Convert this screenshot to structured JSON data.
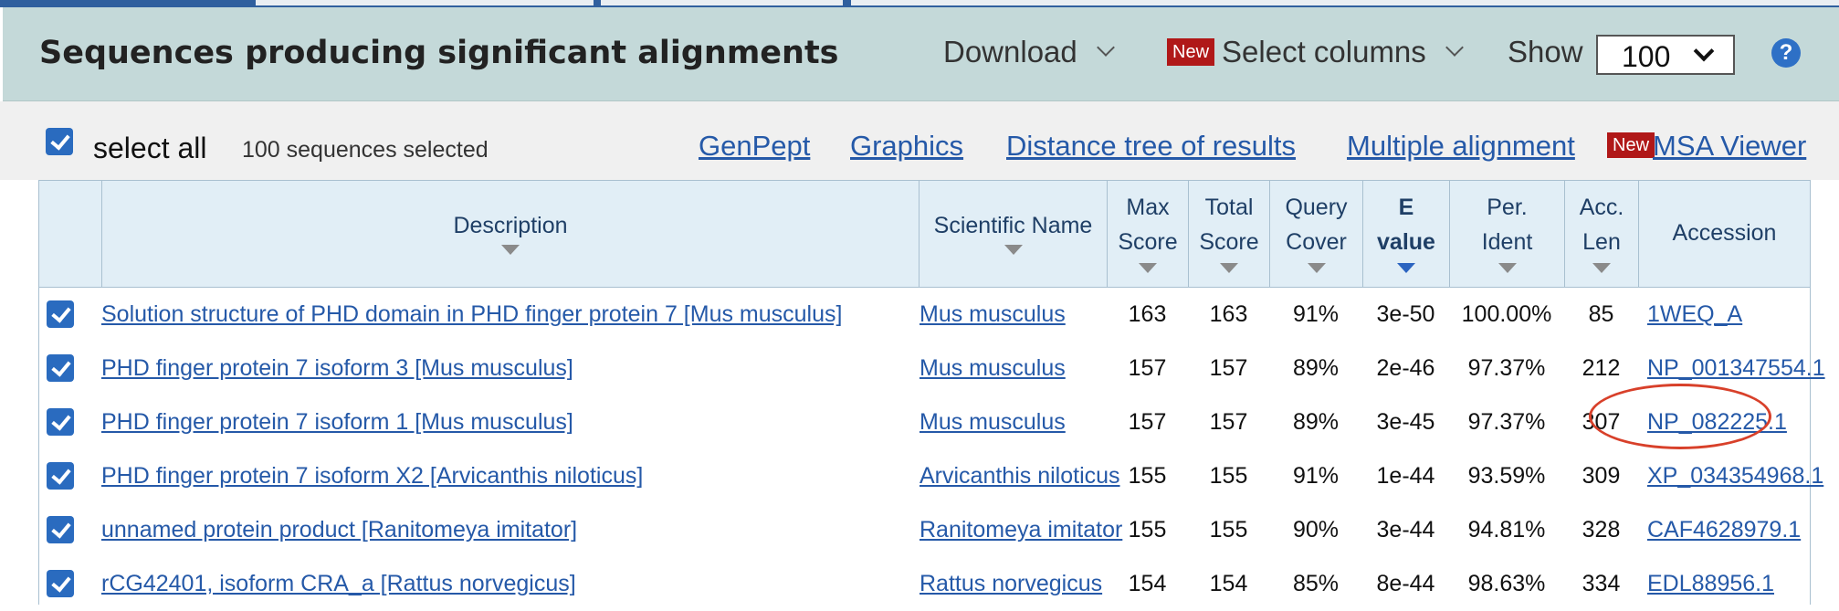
{
  "header": {
    "title": "Sequences producing significant alignments",
    "download_label": "Download",
    "new_badge": "New",
    "select_columns_label": "Select columns",
    "show_label": "Show",
    "show_value": "100",
    "help_glyph": "?"
  },
  "toolbar": {
    "select_all_label": "select all",
    "selected_count": "100 sequences selected",
    "links": [
      "GenPept",
      "Graphics",
      "Distance tree of results",
      "Multiple alignment"
    ],
    "new_badge": "New",
    "msa_viewer": "MSA Viewer"
  },
  "table": {
    "headers": {
      "description": "Description",
      "scientific_name": "Scientific Name",
      "max_score": [
        "Max",
        "Score"
      ],
      "total_score": [
        "Total",
        "Score"
      ],
      "query_cover": [
        "Query",
        "Cover"
      ],
      "e_value": [
        "E",
        "value"
      ],
      "per_ident": [
        "Per.",
        "Ident"
      ],
      "acc_len": [
        "Acc.",
        "Len"
      ],
      "accession": "Accession"
    },
    "rows": [
      {
        "description": "Solution structure of PHD domain in PHD finger protein 7 [Mus musculus]",
        "scientific_name": "Mus musculus",
        "max_score": "163",
        "total_score": "163",
        "query_cover": "91%",
        "e_value": "3e-50",
        "per_ident": "100.00%",
        "acc_len": "85",
        "accession": "1WEQ_A"
      },
      {
        "description": "PHD finger protein 7 isoform 3 [Mus musculus]",
        "scientific_name": "Mus musculus",
        "max_score": "157",
        "total_score": "157",
        "query_cover": "89%",
        "e_value": "2e-46",
        "per_ident": "97.37%",
        "acc_len": "212",
        "accession": "NP_001347554.1"
      },
      {
        "description": "PHD finger protein 7 isoform 1 [Mus musculus]",
        "scientific_name": "Mus musculus",
        "max_score": "157",
        "total_score": "157",
        "query_cover": "89%",
        "e_value": "3e-45",
        "per_ident": "97.37%",
        "acc_len": "307",
        "accession": "NP_082225.1"
      },
      {
        "description": "PHD finger protein 7 isoform X2 [Arvicanthis niloticus]",
        "scientific_name": "Arvicanthis niloticus",
        "max_score": "155",
        "total_score": "155",
        "query_cover": "91%",
        "e_value": "1e-44",
        "per_ident": "93.59%",
        "acc_len": "309",
        "accession": "XP_034354968.1"
      },
      {
        "description": "unnamed protein product [Ranitomeya imitator]",
        "scientific_name": "Ranitomeya imitator",
        "max_score": "155",
        "total_score": "155",
        "query_cover": "90%",
        "e_value": "3e-44",
        "per_ident": "94.81%",
        "acc_len": "328",
        "accession": "CAF4628979.1"
      },
      {
        "description": "rCG42401, isoform CRA_a [Rattus norvegicus]",
        "scientific_name": "Rattus norvegicus",
        "max_score": "154",
        "total_score": "154",
        "query_cover": "85%",
        "e_value": "8e-44",
        "per_ident": "98.63%",
        "acc_len": "334",
        "accession": "EDL88956.1"
      }
    ]
  },
  "colors": {
    "header_bg": "#c4d9d9",
    "link": "#2559a8",
    "checkbox": "#2a6bbf",
    "new_badge": "#b01818",
    "annotation_circle": "#d8402a"
  }
}
